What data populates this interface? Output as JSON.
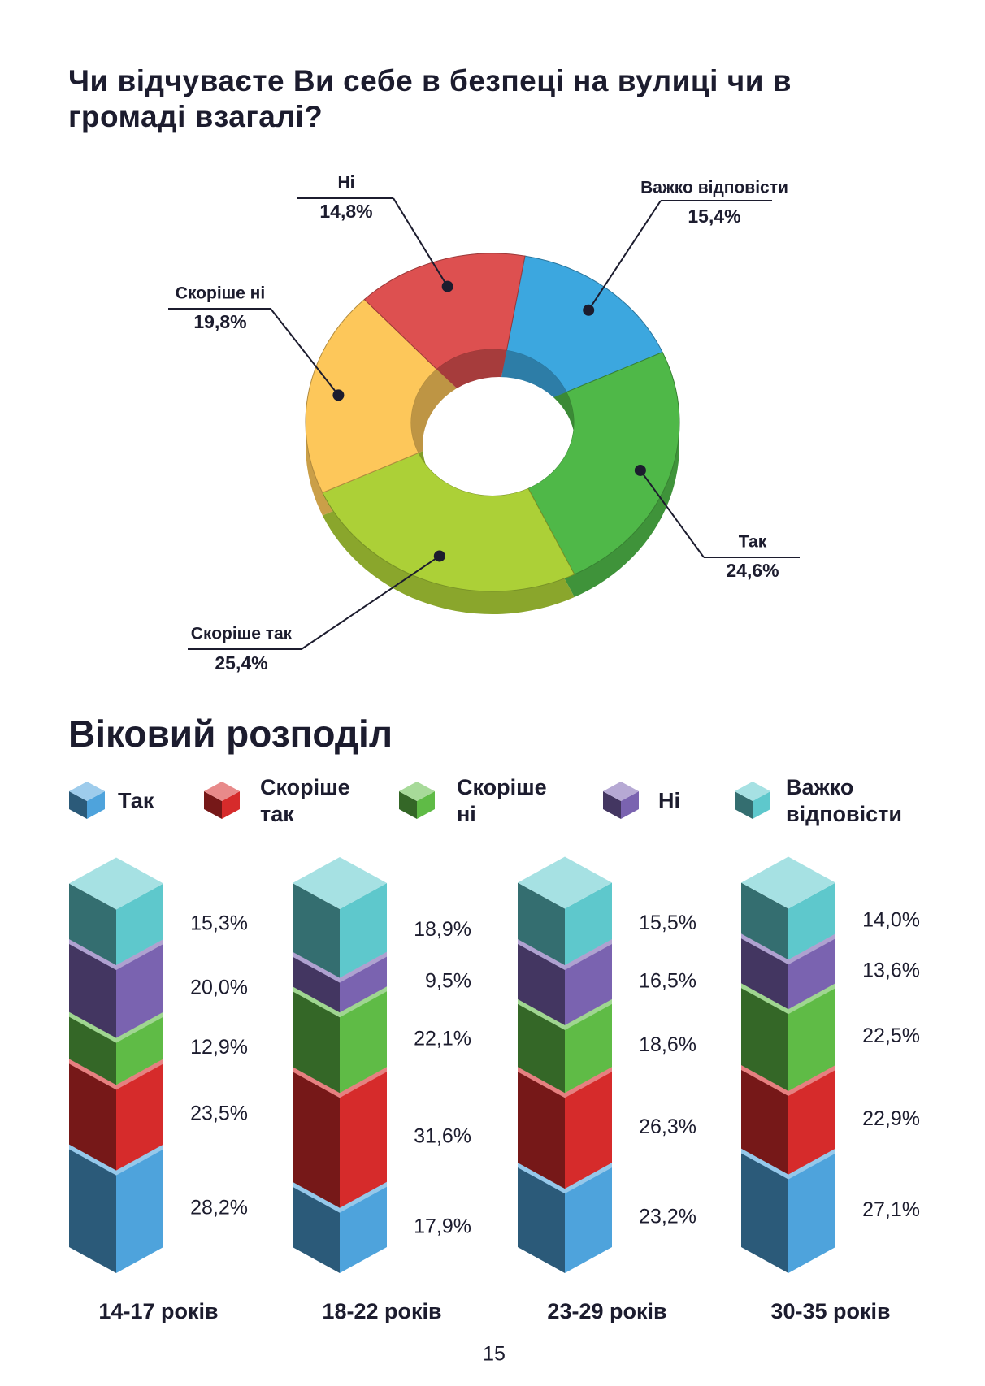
{
  "page_number": "15",
  "chart_data": [
    {
      "type": "pie",
      "title": "Чи відчуваєте Ви себе в безпеці на вулиці чи в громаді взагалі?",
      "categories": [
        "Важко відповісти",
        "Так",
        "Скоріше так",
        "Скоріше ні",
        "Ні"
      ],
      "values": [
        15.4,
        24.6,
        25.4,
        19.8,
        14.8
      ],
      "value_labels": [
        "15,4%",
        "24,6%",
        "25,4%",
        "19,8%",
        "14,8%"
      ],
      "colors": [
        "#3ca7df",
        "#4fb848",
        "#acd037",
        "#fdc75a",
        "#dd5050"
      ]
    },
    {
      "type": "bar",
      "stacked": true,
      "title": "Віковий розподіл",
      "categories": [
        "14-17 років",
        "18-22 років",
        "23-29 років",
        "30-35 років"
      ],
      "series": [
        {
          "name": "Так",
          "color": "#4ea3dc",
          "values": [
            28.2,
            17.9,
            23.2,
            27.1
          ],
          "value_labels": [
            "28,2%",
            "17,9%",
            "23,2%",
            "27,1%"
          ]
        },
        {
          "name": "Скоріше так",
          "color": "#d62b2b",
          "values": [
            23.5,
            31.6,
            26.3,
            22.9
          ],
          "value_labels": [
            "23,5%",
            "31,6%",
            "26,3%",
            "22,9%"
          ]
        },
        {
          "name": "Скоріше ні",
          "color": "#5fbb46",
          "values": [
            12.9,
            22.1,
            18.6,
            22.5
          ],
          "value_labels": [
            "12,9%",
            "22,1%",
            "18,6%",
            "22,5%"
          ]
        },
        {
          "name": "Ні",
          "color": "#7a63b0",
          "values": [
            20.0,
            9.5,
            16.5,
            13.6
          ],
          "value_labels": [
            "20,0%",
            "9,5%",
            "16,5%",
            "13,6%"
          ]
        },
        {
          "name": "Важко відповісти",
          "color": "#5ec8cc",
          "values": [
            15.3,
            18.9,
            15.5,
            14.0
          ],
          "value_labels": [
            "15,3%",
            "18,9%",
            "15,5%",
            "14,0%"
          ]
        }
      ]
    }
  ]
}
